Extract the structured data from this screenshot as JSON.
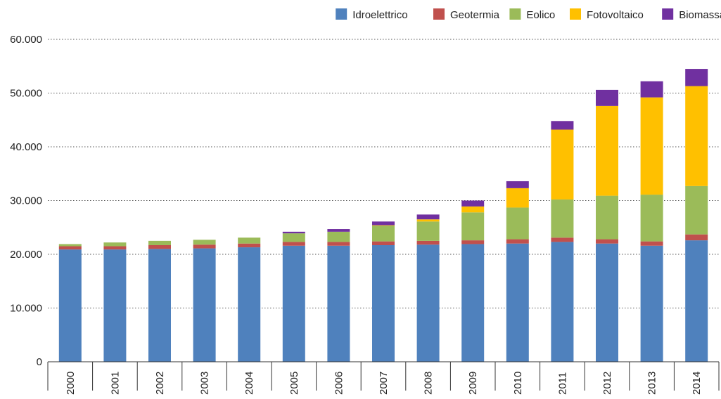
{
  "chart_data": {
    "type": "stacked_bar",
    "categories": [
      "2000",
      "2001",
      "2002",
      "2003",
      "2004",
      "2005",
      "2006",
      "2007",
      "2008",
      "2009",
      "2010",
      "2011",
      "2012",
      "2013",
      "2014"
    ],
    "series": [
      {
        "name": "Idroelettrico",
        "color": "#4f81bd",
        "values": [
          20900,
          20900,
          21000,
          21100,
          21300,
          21600,
          21600,
          21700,
          21800,
          21900,
          22000,
          22300,
          22000,
          21600,
          22600
        ]
      },
      {
        "name": "Geotermia",
        "color": "#c0504d",
        "values": [
          600,
          600,
          700,
          700,
          700,
          700,
          700,
          700,
          700,
          700,
          800,
          800,
          800,
          800,
          1100
        ]
      },
      {
        "name": "Eolico",
        "color": "#9bbb59",
        "values": [
          400,
          700,
          800,
          900,
          1100,
          1600,
          1900,
          2900,
          3600,
          5200,
          5900,
          7100,
          8100,
          8700,
          9000
        ]
      },
      {
        "name": "Fotovoltaico",
        "color": "#ffc000",
        "values": [
          0,
          0,
          0,
          0,
          0,
          0,
          0,
          100,
          400,
          1100,
          3600,
          13000,
          16700,
          18100,
          18600
        ]
      },
      {
        "name": "Biomassa",
        "color": "#7030a0",
        "values": [
          0,
          0,
          0,
          0,
          0,
          300,
          500,
          700,
          900,
          1100,
          1300,
          1600,
          3000,
          3000,
          3200
        ]
      }
    ],
    "ylim": [
      0,
      60000
    ],
    "yticks": [
      0,
      {
        "value": 10000,
        "label": "10.000"
      },
      {
        "value": 20000,
        "label": "20.000"
      },
      {
        "value": 30000,
        "label": "30.000"
      },
      {
        "value": 40000,
        "label": "40.000"
      },
      {
        "value": 50000,
        "label": "50.000"
      },
      {
        "value": 60000,
        "label": "60.000"
      }
    ],
    "grid": true,
    "legend": "top-right"
  }
}
